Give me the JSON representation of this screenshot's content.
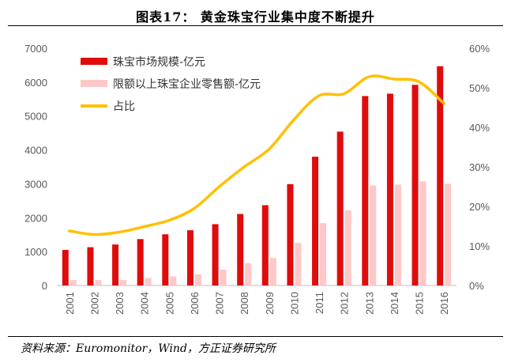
{
  "header": {
    "title": "图表17： 黄金珠宝行业集中度不断提升"
  },
  "footer": {
    "source": "资料来源：Euromonitor，Wind，方正证券研究所"
  },
  "chart_data": {
    "type": "bar",
    "categories": [
      "2001",
      "2002",
      "2003",
      "2004",
      "2005",
      "2006",
      "2007",
      "2008",
      "2009",
      "2010",
      "2011",
      "2012",
      "2013",
      "2014",
      "2015",
      "2016"
    ],
    "series": [
      {
        "name": "珠宝市场规模-亿元",
        "type": "bar",
        "axis": "left",
        "color": "#e00c0c",
        "values": [
          1050,
          1130,
          1210,
          1370,
          1510,
          1630,
          1810,
          2110,
          2370,
          2990,
          3800,
          4540,
          5590,
          5660,
          5920,
          6470
        ]
      },
      {
        "name": "限额以上珠宝企业零售额-亿元",
        "type": "bar",
        "axis": "left",
        "color": "#ffc7c7",
        "values": [
          160,
          160,
          160,
          220,
          270,
          330,
          470,
          660,
          810,
          1260,
          1840,
          2220,
          2950,
          2980,
          3070,
          3000
        ]
      },
      {
        "name": "占比",
        "type": "line",
        "axis": "right",
        "color": "#ffc000",
        "unit": "%",
        "values": [
          13.8,
          12.9,
          13.5,
          14.9,
          16.5,
          19.5,
          25.0,
          30.0,
          34.5,
          42.0,
          48.0,
          48.5,
          52.8,
          52.2,
          51.5,
          46.0
        ]
      }
    ],
    "y_left": {
      "min": 0,
      "max": 7000,
      "ticks": [
        "0",
        "1000",
        "2000",
        "3000",
        "4000",
        "5000",
        "6000",
        "7000"
      ]
    },
    "y_right": {
      "min": 0,
      "max": 60,
      "ticks": [
        "0%",
        "10%",
        "20%",
        "30%",
        "40%",
        "50%",
        "60%"
      ]
    },
    "legend_position": "top-left",
    "grid": false
  }
}
